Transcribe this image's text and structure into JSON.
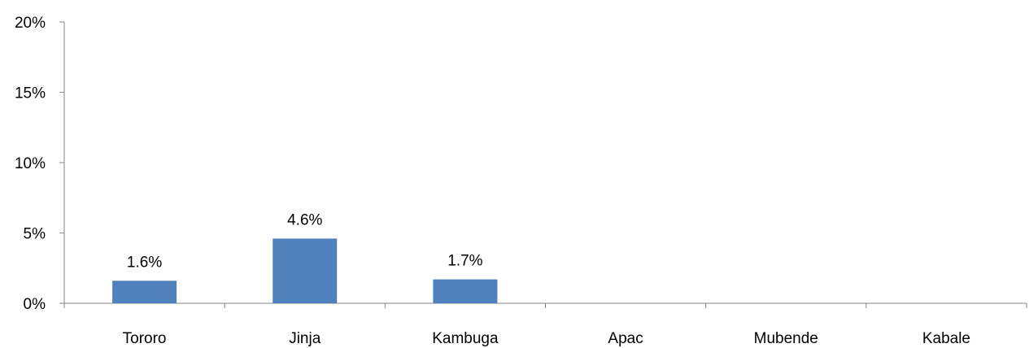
{
  "chart_data": {
    "type": "bar",
    "title": "",
    "xlabel": "",
    "ylabel": "",
    "categories": [
      "Tororo",
      "Jinja",
      "Kambuga",
      "Apac",
      "Mubende",
      "Kabale"
    ],
    "values": [
      1.6,
      4.6,
      1.7,
      0,
      0,
      0
    ],
    "value_labels": [
      "1.6%",
      "4.6%",
      "1.7%",
      "",
      "",
      ""
    ],
    "ylim": [
      0,
      20
    ],
    "y_ticks": [
      0,
      5,
      10,
      15,
      20
    ],
    "y_tick_labels": [
      "0%",
      "5%",
      "10%",
      "15%",
      "20%"
    ],
    "grid": false,
    "legend": "none",
    "bar_color": "#4F81BD",
    "axis_color": "#868686"
  }
}
